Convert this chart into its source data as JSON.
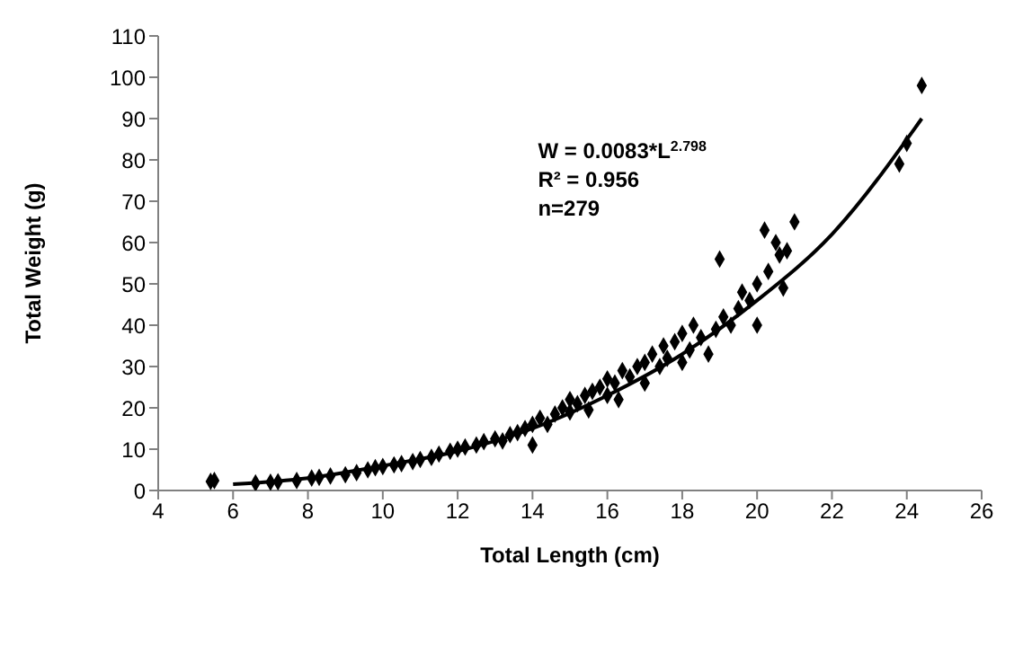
{
  "chart_data": {
    "type": "scatter",
    "xlabel": "Total Length (cm)",
    "ylabel": "Total Weight (g)",
    "xlim": [
      4,
      26
    ],
    "xticks": [
      4,
      6,
      8,
      10,
      12,
      14,
      16,
      18,
      20,
      22,
      24,
      26
    ],
    "ylim": [
      0,
      110
    ],
    "yticks": [
      0,
      10,
      20,
      30,
      40,
      50,
      60,
      70,
      80,
      90,
      100,
      110
    ],
    "grid": false,
    "legend": false,
    "marker": "diamond",
    "annotations": [
      "W = 0.0083*L$^{2.798}$",
      "R² = 0.956",
      "n=279"
    ],
    "series": [
      {
        "color": "#000000",
        "x": [
          5.4,
          5.5,
          6.6,
          7.0,
          7.2,
          7.7,
          8.1,
          8.3,
          8.6,
          9.0,
          9.3,
          9.6,
          9.8,
          10.0,
          10.3,
          10.5,
          10.8,
          11.0,
          11.3,
          11.5,
          11.8,
          12.0,
          12.2,
          12.5,
          12.7,
          13.0,
          13.2,
          13.4,
          13.6,
          13.8,
          14.0,
          14.0,
          14.2,
          14.4,
          14.6,
          14.8,
          15.0,
          15.0,
          15.2,
          15.4,
          15.5,
          15.6,
          15.8,
          16.0,
          16.0,
          16.2,
          16.3,
          16.4,
          16.6,
          16.8,
          17.0,
          17.0,
          17.2,
          17.4,
          17.5,
          17.6,
          17.8,
          18.0,
          18.0,
          18.2,
          18.3,
          18.5,
          18.7,
          18.9,
          19.0,
          19.1,
          19.3,
          19.5,
          19.6,
          19.8,
          20.0,
          20.0,
          20.2,
          20.3,
          20.5,
          20.6,
          20.7,
          20.8,
          21.0,
          23.8,
          24.0,
          24.4
        ],
        "values": [
          2.2,
          2.4,
          1.8,
          2,
          2.1,
          2.4,
          3,
          3.2,
          3.5,
          3.8,
          4.3,
          5,
          5.5,
          5.8,
          6.2,
          6.5,
          7,
          7.5,
          8,
          8.8,
          9.5,
          10,
          10.5,
          11,
          11.8,
          12.5,
          12,
          13.5,
          14,
          15,
          16,
          11,
          17.5,
          16,
          18.5,
          20,
          19,
          22,
          21,
          23,
          19.5,
          24,
          25,
          23,
          27,
          26,
          22,
          29,
          27.5,
          30,
          31,
          26,
          33,
          30,
          35,
          32,
          36,
          38,
          31,
          34,
          40,
          37,
          33,
          39,
          56,
          42,
          40,
          44,
          48,
          46,
          50,
          40,
          63,
          53,
          60,
          57,
          49,
          58,
          65,
          79,
          84,
          98
        ]
      },
      {
        "type": "line",
        "color": "#000000",
        "line_style": "solid",
        "marker": "none",
        "x": [
          6,
          8,
          10,
          12,
          14,
          16,
          18,
          20,
          22,
          24.4
        ],
        "values": [
          1.5,
          3,
          6,
          9.5,
          15,
          23,
          33,
          46,
          62,
          90
        ]
      }
    ]
  }
}
